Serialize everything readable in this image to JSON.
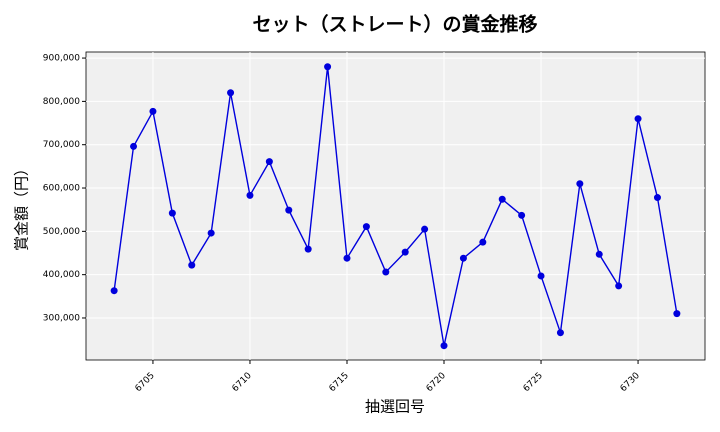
{
  "chart_data": {
    "type": "line",
    "title": "セット（ストレート）の賞金推移",
    "xlabel": "抽選回号",
    "ylabel": "賞金額（円）",
    "x": [
      6703,
      6704,
      6705,
      6706,
      6707,
      6708,
      6709,
      6710,
      6711,
      6712,
      6713,
      6714,
      6715,
      6716,
      6717,
      6718,
      6719,
      6720,
      6721,
      6722,
      6723,
      6724,
      6725,
      6726,
      6727,
      6728,
      6729,
      6730,
      6731,
      6732
    ],
    "series": [
      {
        "name": "賞金額",
        "color": "#0000dd",
        "values": [
          363000,
          696000,
          777000,
          542000,
          422000,
          496000,
          820000,
          583000,
          661000,
          549000,
          459000,
          880000,
          438000,
          511000,
          406000,
          452000,
          505000,
          236000,
          438000,
          475000,
          574000,
          537000,
          397000,
          266000,
          610000,
          447000,
          374000,
          760000,
          578000,
          310000
        ]
      }
    ],
    "xlim": [
      6701.55,
      6733.45
    ],
    "ylim": [
      203000,
      914000
    ],
    "xticks": [
      6705,
      6710,
      6715,
      6720,
      6725,
      6730
    ],
    "yticks": [
      {
        "value": 300000,
        "label": "300,000"
      },
      {
        "value": 400000,
        "label": "400,000"
      },
      {
        "value": 500000,
        "label": "500,000"
      },
      {
        "value": 600000,
        "label": "600,000"
      },
      {
        "value": 700000,
        "label": "700,000"
      },
      {
        "value": 800000,
        "label": "800,000"
      },
      {
        "value": 900000,
        "label": "900,000"
      }
    ],
    "grid": true
  }
}
